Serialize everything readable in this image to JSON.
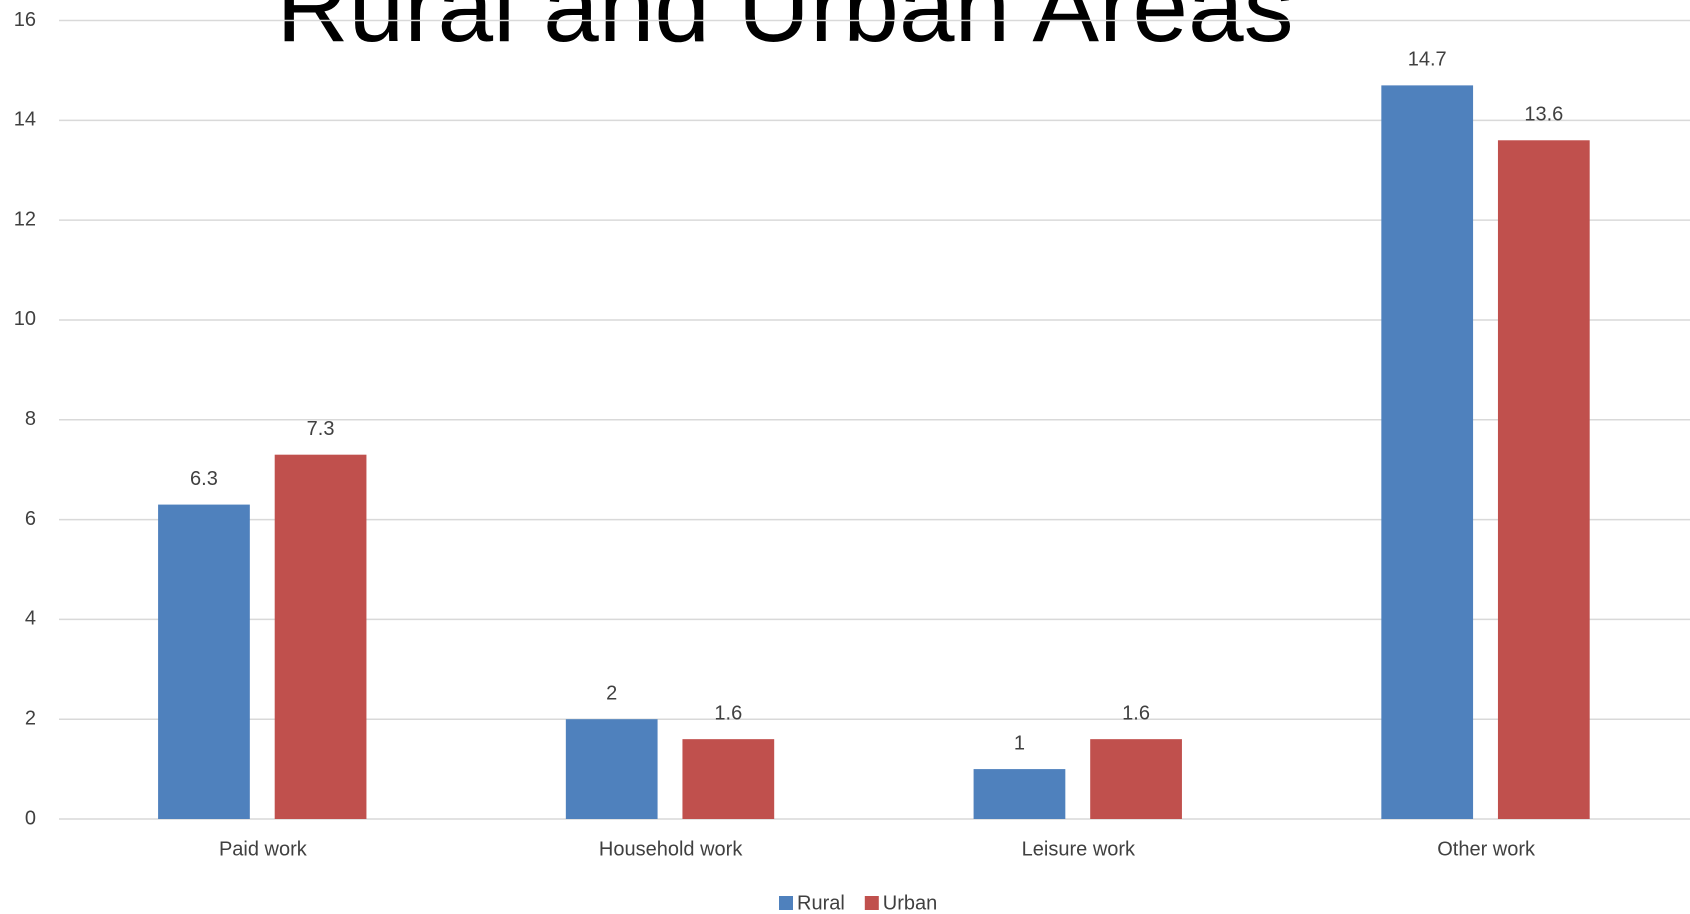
{
  "chart_data": {
    "type": "bar",
    "title": "Rural and Urban Areas",
    "categories": [
      "Paid work",
      "Household work",
      "Leisure work",
      "Other work"
    ],
    "series": [
      {
        "name": "Rural",
        "color": "#4f81bd",
        "values": [
          6.3,
          2,
          1,
          14.7
        ]
      },
      {
        "name": "Urban",
        "color": "#c0504d",
        "values": [
          7.3,
          1.6,
          1.6,
          13.6
        ]
      }
    ],
    "ylim": [
      0,
      16
    ],
    "yticks": [
      0,
      2,
      4,
      6,
      8,
      10,
      12,
      14,
      16
    ],
    "grid": true,
    "legend": "bottom"
  }
}
